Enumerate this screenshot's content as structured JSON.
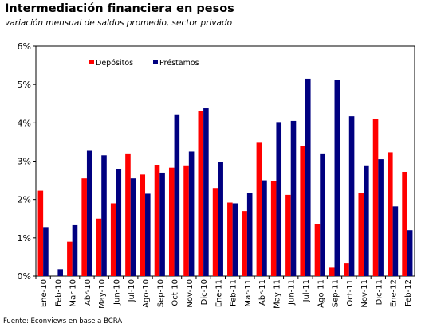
{
  "chart_data": {
    "type": "bar",
    "title": "Intermediación financiera en pesos",
    "subtitle": "variación mensual de saldos promedio, sector privado",
    "source": "Fuente: Econviews en base a BCRA",
    "categories": [
      "Ene-10",
      "Feb-10",
      "Mar-10",
      "Abr-10",
      "May-10",
      "Jun-10",
      "Jul-10",
      "Ago-10",
      "Sep-10",
      "Oct-10",
      "Nov-10",
      "Dic-10",
      "Ene-11",
      "Feb-11",
      "Mar-11",
      "Abr-11",
      "May-11",
      "Jun-11",
      "Jul-11",
      "Ago-11",
      "Sep-11",
      "Oct-11",
      "Nov-11",
      "Dic-11",
      "Ene-12",
      "Feb-12"
    ],
    "series": [
      {
        "name": "Depósitos",
        "color": "#ff0000",
        "values": [
          2.23,
          null,
          0.9,
          2.55,
          1.5,
          1.9,
          3.2,
          2.65,
          2.9,
          2.83,
          2.87,
          4.3,
          2.3,
          1.92,
          1.7,
          3.48,
          2.48,
          2.12,
          3.4,
          1.37,
          0.22,
          0.33,
          2.18,
          4.1,
          3.23,
          2.72
        ]
      },
      {
        "name": "Préstamos",
        "color": "#000080",
        "values": [
          1.28,
          0.18,
          1.33,
          3.27,
          3.15,
          2.8,
          2.55,
          2.15,
          2.7,
          4.22,
          3.25,
          4.38,
          2.97,
          1.9,
          2.16,
          2.5,
          4.02,
          4.05,
          5.15,
          3.2,
          5.12,
          4.17,
          2.87,
          3.05,
          1.82,
          1.2
        ]
      }
    ],
    "yticks": [
      "0%",
      "1%",
      "2%",
      "3%",
      "4%",
      "5%",
      "6%"
    ],
    "ylim": [
      0,
      6
    ],
    "legend": "top-left",
    "grid": false
  }
}
